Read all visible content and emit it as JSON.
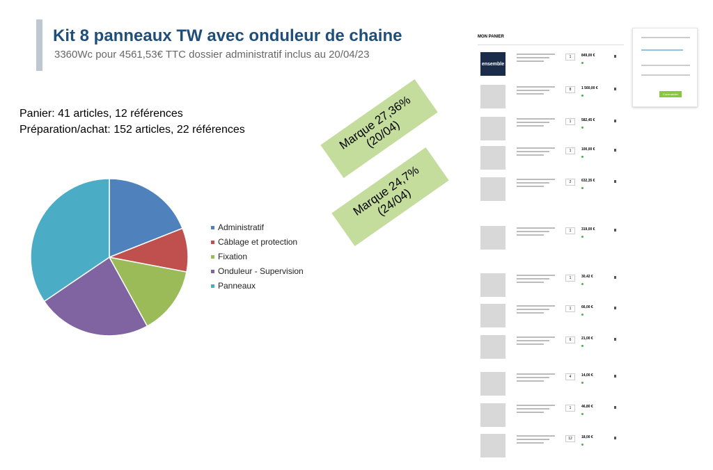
{
  "header": {
    "title": "Kit 8 panneaux TW avec onduleur de chaine",
    "subtitle": "3360Wc pour 4561,53€ TTC dossier administratif inclus au 20/04/23"
  },
  "summary": [
    "Panier: 41 articles, 12 références",
    "Préparation/achat:  152 articles, 22 références"
  ],
  "chart_data": {
    "type": "pie",
    "categories": [
      "Administratif",
      "Câblage et protection",
      "Fixation",
      "Onduleur - Supervision",
      "Panneaux"
    ],
    "values": [
      19,
      9,
      14,
      23.5,
      34.5
    ],
    "colors": [
      "#4f81bd",
      "#c0504d",
      "#9bbb59",
      "#8064a2",
      "#4bacc6"
    ]
  },
  "callouts": [
    {
      "lines": [
        "Marque 27,36%",
        "(20/04)"
      ]
    },
    {
      "lines": [
        "Marque 24,7%",
        "(24/04)"
      ]
    }
  ],
  "cart": {
    "title": "MON PANIER",
    "logo": "ensemble",
    "button": "Commander",
    "items": [
      {
        "qty": "1",
        "price": "849,00 €"
      },
      {
        "qty": "8",
        "price": "1 560,00 €"
      },
      {
        "qty": "1",
        "price": "582,45 €"
      },
      {
        "qty": "1",
        "price": "100,00 €"
      },
      {
        "qty": "2",
        "price": "632,35 €"
      },
      {
        "qty": "1",
        "price": "319,00 €"
      },
      {
        "qty": "1",
        "price": "30,42 €"
      },
      {
        "qty": "1",
        "price": "66,00 €"
      },
      {
        "qty": "6",
        "price": "21,00 €"
      },
      {
        "qty": "4",
        "price": "14,00 €"
      },
      {
        "qty": "1",
        "price": "46,80 €"
      },
      {
        "qty": "12",
        "price": "18,00 €"
      }
    ]
  }
}
